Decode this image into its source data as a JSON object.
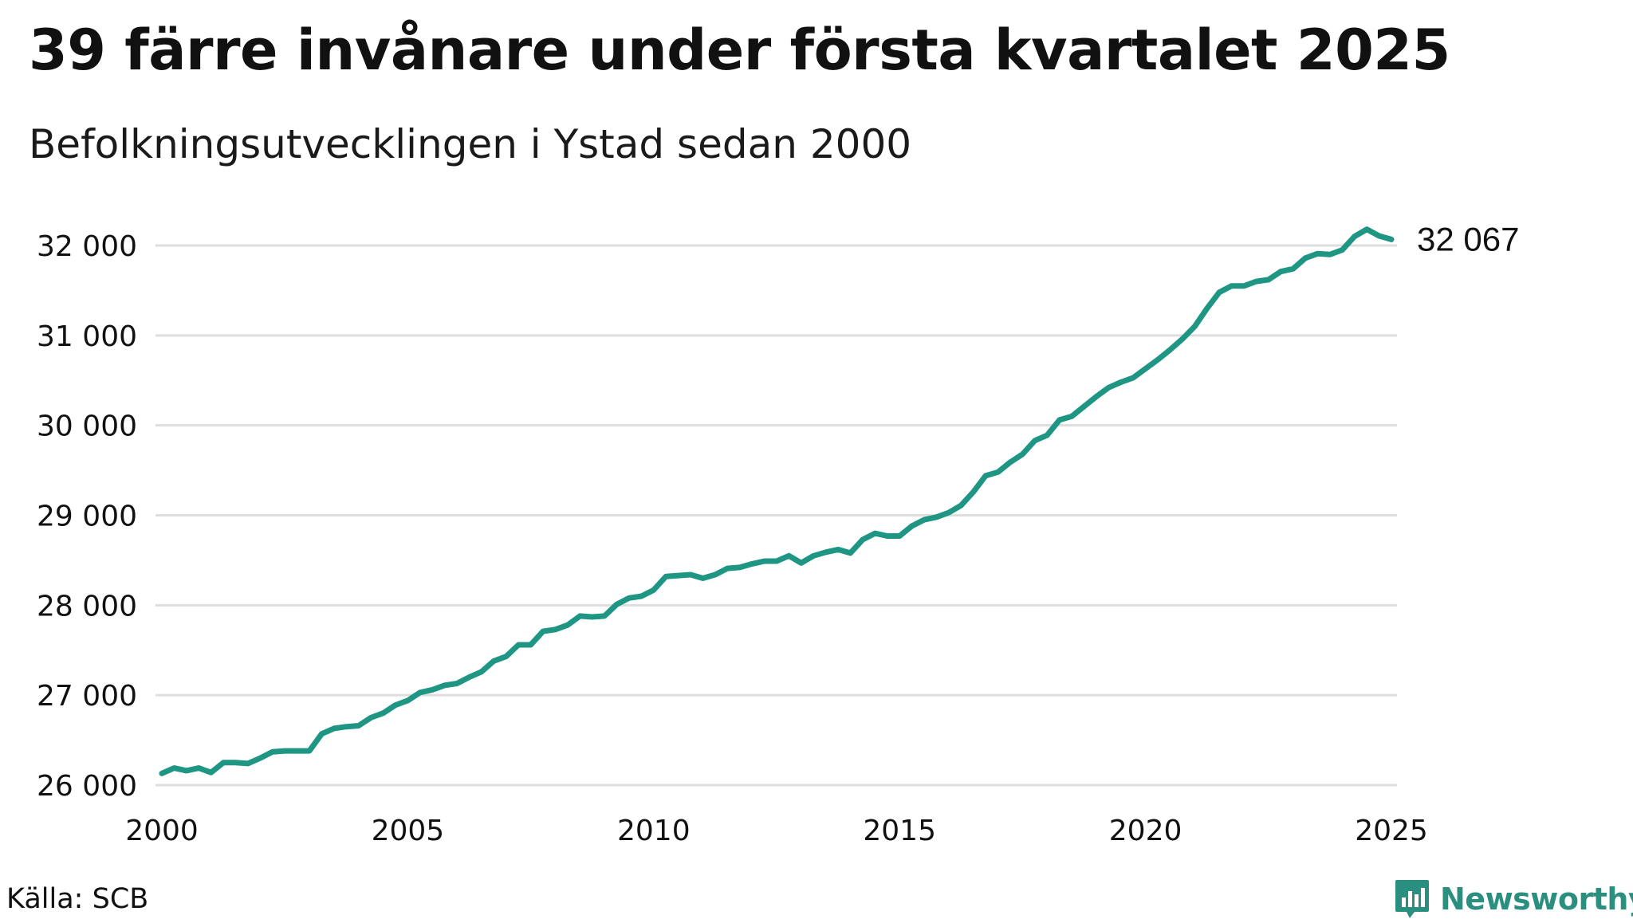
{
  "title": "39 färre invånare under första kvartalet 2025",
  "subtitle": "Befolkningsutvecklingen i Ystad sedan 2000",
  "source": "Källa: SCB",
  "brand": {
    "name": "Newsworthy",
    "icon": "newsworthy-chart-bubble-icon",
    "color": "#2a8f7f"
  },
  "colors": {
    "line": "#1f9683",
    "grid": "#dedede",
    "text": "#111111"
  },
  "chart_data": {
    "type": "line",
    "title": "39 färre invånare under första kvartalet 2025",
    "subtitle": "Befolkningsutvecklingen i Ystad sedan 2000",
    "xlabel": "",
    "ylabel": "",
    "xlim": [
      2000,
      2025
    ],
    "ylim": [
      26000,
      32000
    ],
    "x_ticks": [
      2000,
      2005,
      2010,
      2015,
      2020,
      2025
    ],
    "x_tick_labels": [
      "2000",
      "2005",
      "2010",
      "2015",
      "2020",
      "2025"
    ],
    "y_ticks": [
      26000,
      27000,
      28000,
      29000,
      30000,
      31000,
      32000
    ],
    "y_tick_labels": [
      "26 000",
      "27 000",
      "28 000",
      "29 000",
      "30 000",
      "31 000",
      "32 000"
    ],
    "grid": "horizontal",
    "legend": "none",
    "end_label": "32 067",
    "series": [
      {
        "frequency": "quarterly",
        "x": [
          2000.0,
          2000.25,
          2000.5,
          2000.75,
          2001.0,
          2001.25,
          2001.5,
          2001.75,
          2002.0,
          2002.25,
          2002.5,
          2002.75,
          2003.0,
          2003.25,
          2003.5,
          2003.75,
          2004.0,
          2004.25,
          2004.5,
          2004.75,
          2005.0,
          2005.25,
          2005.5,
          2005.75,
          2006.0,
          2006.25,
          2006.5,
          2006.75,
          2007.0,
          2007.25,
          2007.5,
          2007.75,
          2008.0,
          2008.25,
          2008.5,
          2008.75,
          2009.0,
          2009.25,
          2009.5,
          2009.75,
          2010.0,
          2010.25,
          2010.5,
          2010.75,
          2011.0,
          2011.25,
          2011.5,
          2011.75,
          2012.0,
          2012.25,
          2012.5,
          2012.75,
          2013.0,
          2013.25,
          2013.5,
          2013.75,
          2014.0,
          2014.25,
          2014.5,
          2014.75,
          2015.0,
          2015.25,
          2015.5,
          2015.75,
          2016.0,
          2016.25,
          2016.5,
          2016.75,
          2017.0,
          2017.25,
          2017.5,
          2017.75,
          2018.0,
          2018.25,
          2018.5,
          2018.75,
          2019.0,
          2019.25,
          2019.5,
          2019.75,
          2020.0,
          2020.25,
          2020.5,
          2020.75,
          2021.0,
          2021.25,
          2021.5,
          2021.75,
          2022.0,
          2022.25,
          2022.5,
          2022.75,
          2023.0,
          2023.25,
          2023.5,
          2023.75,
          2024.0,
          2024.25,
          2024.5,
          2024.75,
          2025.0
        ],
        "values": [
          26130,
          26190,
          26160,
          26190,
          26140,
          26250,
          26250,
          26240,
          26300,
          26370,
          26380,
          26380,
          26380,
          26570,
          26630,
          26650,
          26660,
          26750,
          26800,
          26890,
          26940,
          27030,
          27060,
          27110,
          27130,
          27200,
          27260,
          27380,
          27430,
          27560,
          27560,
          27710,
          27730,
          27780,
          27880,
          27870,
          27880,
          28010,
          28080,
          28100,
          28170,
          28320,
          28330,
          28340,
          28300,
          28340,
          28410,
          28420,
          28460,
          28490,
          28490,
          28550,
          28470,
          28550,
          28590,
          28620,
          28580,
          28730,
          28800,
          28770,
          28770,
          28880,
          28950,
          28980,
          29030,
          29110,
          29260,
          29440,
          29480,
          29590,
          29680,
          29830,
          29890,
          30060,
          30100,
          30210,
          30320,
          30420,
          30480,
          30530,
          30630,
          30730,
          30840,
          30960,
          31100,
          31300,
          31480,
          31550,
          31550,
          31600,
          31620,
          31710,
          31740,
          31860,
          31910,
          31900,
          31950,
          32100,
          32180,
          32106,
          32067
        ]
      }
    ]
  }
}
